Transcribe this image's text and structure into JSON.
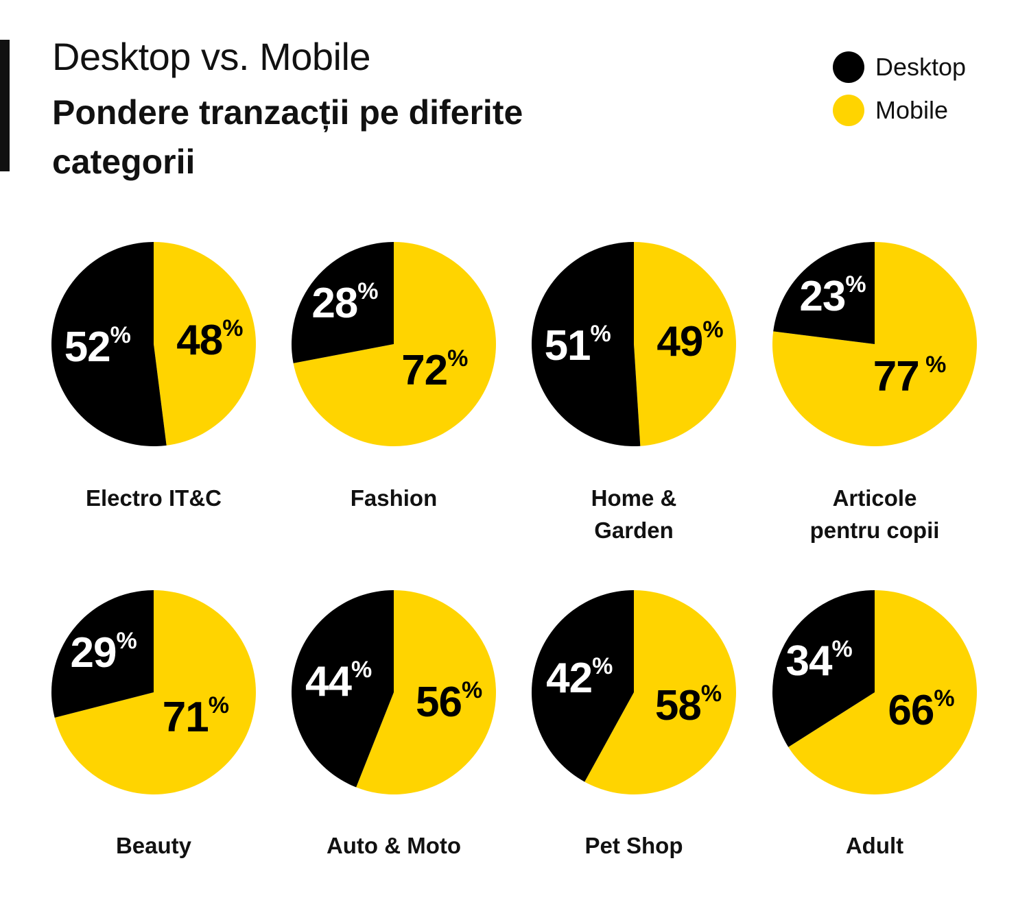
{
  "title": "Desktop vs. Mobile",
  "subtitle": "Pondere tranzacții pe diferite categorii",
  "legend": {
    "desktop": {
      "label": "Desktop",
      "color": "#000000"
    },
    "mobile": {
      "label": "Mobile",
      "color": "#FFD400"
    }
  },
  "chart_data": [
    {
      "type": "pie",
      "title": "Electro IT&C",
      "labels": [
        "Desktop",
        "Mobile"
      ],
      "values": [
        52,
        48
      ],
      "display": [
        "52%",
        "48%"
      ]
    },
    {
      "type": "pie",
      "title": "Fashion",
      "labels": [
        "Desktop",
        "Mobile"
      ],
      "values": [
        28,
        72
      ],
      "display": [
        "28%",
        "72%"
      ]
    },
    {
      "type": "pie",
      "title": "Home & Garden",
      "labels": [
        "Desktop",
        "Mobile"
      ],
      "values": [
        51,
        49
      ],
      "display": [
        "51%",
        "49%"
      ]
    },
    {
      "type": "pie",
      "title": "Articole pentru copii",
      "labels": [
        "Desktop",
        "Mobile"
      ],
      "values": [
        23,
        77
      ],
      "display": [
        "23%",
        "77 %"
      ]
    },
    {
      "type": "pie",
      "title": "Beauty",
      "labels": [
        "Desktop",
        "Mobile"
      ],
      "values": [
        29,
        71
      ],
      "display": [
        "29%",
        "71%"
      ]
    },
    {
      "type": "pie",
      "title": "Auto & Moto",
      "labels": [
        "Desktop",
        "Mobile"
      ],
      "values": [
        44,
        56
      ],
      "display": [
        "44%",
        "56%"
      ]
    },
    {
      "type": "pie",
      "title": "Pet Shop",
      "labels": [
        "Desktop",
        "Mobile"
      ],
      "values": [
        42,
        58
      ],
      "display": [
        "42%",
        "58%"
      ]
    },
    {
      "type": "pie",
      "title": "Adult",
      "labels": [
        "Desktop",
        "Mobile"
      ],
      "values": [
        34,
        66
      ],
      "display": [
        "34%",
        "66%"
      ]
    }
  ]
}
